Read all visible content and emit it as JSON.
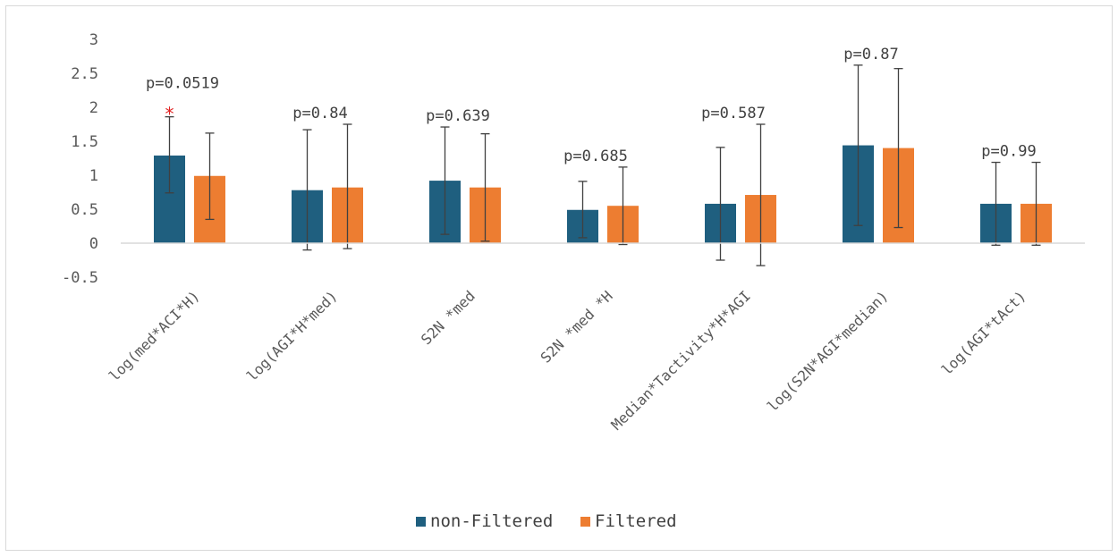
{
  "chart_data": {
    "type": "bar",
    "title": "",
    "xlabel": "",
    "ylabel": "",
    "ylim": [
      -0.5,
      3
    ],
    "yticks": [
      -0.5,
      0,
      0.5,
      1,
      1.5,
      2,
      2.5,
      3
    ],
    "ytick_labels": [
      "-0.5",
      "0",
      "0.5",
      "1",
      "1.5",
      "2",
      "2.5",
      "3"
    ],
    "grid": false,
    "legend_position": "bottom",
    "categories": [
      "log(med*ACI*H)",
      "log(AGI*H*med)",
      "S2N *med",
      "S2N *med *H",
      "Median*Tactivity*H*AGI",
      "log(S2N*AGI*median)",
      "log(AGI*tAct)"
    ],
    "series": [
      {
        "name": "non-Filtered",
        "color": "#1f5f7f",
        "values": [
          1.29,
          0.78,
          0.92,
          0.49,
          0.58,
          1.44,
          0.58
        ],
        "error_low": [
          0.74,
          -0.1,
          0.13,
          0.08,
          -0.25,
          0.26,
          -0.03
        ],
        "error_high": [
          1.86,
          1.67,
          1.71,
          0.91,
          1.41,
          2.62,
          1.19
        ]
      },
      {
        "name": "Filtered",
        "color": "#ed7d31",
        "values": [
          0.99,
          0.82,
          0.82,
          0.55,
          0.71,
          1.4,
          0.58
        ],
        "error_low": [
          0.35,
          -0.08,
          0.03,
          -0.02,
          -0.33,
          0.23,
          -0.03
        ],
        "error_high": [
          1.62,
          1.75,
          1.61,
          1.12,
          1.75,
          2.57,
          1.19
        ]
      }
    ],
    "annotations": [
      {
        "category": 0,
        "text": "p=0.0519",
        "significant": true,
        "marker": "*"
      },
      {
        "category": 1,
        "text": "p=0.84"
      },
      {
        "category": 2,
        "text": "p=0.639"
      },
      {
        "category": 3,
        "text": "p=0.685"
      },
      {
        "category": 4,
        "text": "p=0.587"
      },
      {
        "category": 5,
        "text": "p=0.87"
      },
      {
        "category": 6,
        "text": "p=0.99"
      }
    ],
    "colors": {
      "axis": "#d9d9d9",
      "error_bar": "#404040",
      "significance": "#e02020"
    }
  }
}
